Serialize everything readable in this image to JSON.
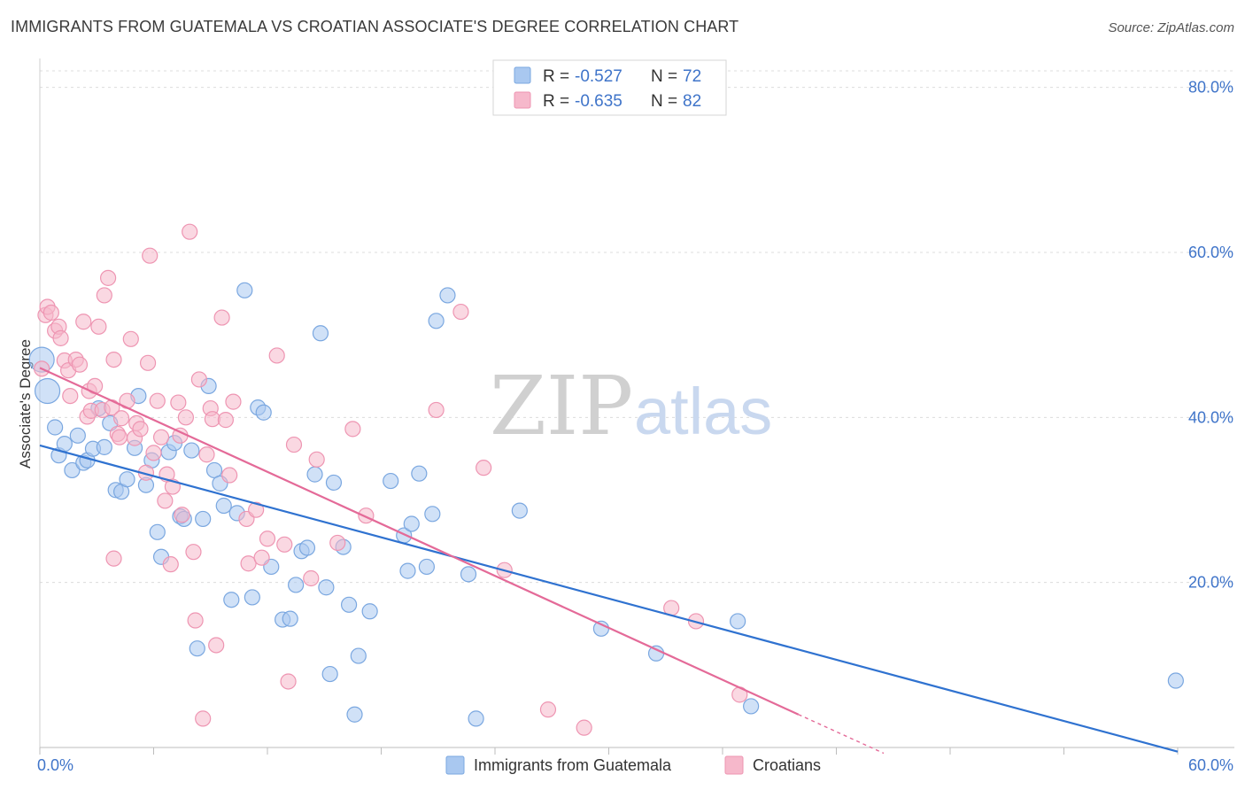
{
  "title": "IMMIGRANTS FROM GUATEMALA VS CROATIAN ASSOCIATE'S DEGREE CORRELATION CHART",
  "source": "Source: ZipAtlas.com",
  "watermark": {
    "zip": "ZIP",
    "atlas": "atlas"
  },
  "legend": {
    "rows": [
      {
        "r_label": "R =",
        "r_value": "-0.527",
        "n_label": "N =",
        "n_value": "72",
        "color": "#a9c8f0"
      },
      {
        "r_label": "R =",
        "r_value": "-0.635",
        "n_label": "N =",
        "n_value": "82",
        "color": "#f6b8cb"
      }
    ]
  },
  "colors": {
    "blue_fill": "#a9c8f0",
    "blue_stroke": "#7aa7e0",
    "blue_line": "#2f72d0",
    "pink_fill": "#f6b8cb",
    "pink_stroke": "#ee95b2",
    "pink_line": "#e46a98",
    "tick_text": "#3f74c9",
    "grid": "#dcdcdc"
  },
  "chart_data": {
    "type": "scatter",
    "title": "IMMIGRANTS FROM GUATEMALA VS CROATIAN ASSOCIATE'S DEGREE CORRELATION CHART",
    "xlabel": "",
    "ylabel": "Associate's Degree",
    "xlim": [
      0,
      60
    ],
    "ylim": [
      0,
      82
    ],
    "x_tick_labels": [
      "0.0%",
      "60.0%"
    ],
    "y_ticks": [
      20,
      40,
      60,
      80
    ],
    "y_tick_labels": [
      "20.0%",
      "40.0%",
      "60.0%",
      "80.0%"
    ],
    "grid": true,
    "legend_position": "top-center",
    "series": [
      {
        "name": "Immigrants from Guatemala",
        "color": "#a9c8f0",
        "trend": {
          "x": [
            0,
            60
          ],
          "y": [
            36.6,
            -0.5
          ]
        },
        "points": [
          [
            0.1,
            47.0
          ],
          [
            0.4,
            43.2
          ],
          [
            0.8,
            38.8
          ],
          [
            1.0,
            35.4
          ],
          [
            1.3,
            36.8
          ],
          [
            1.7,
            33.6
          ],
          [
            2.0,
            37.8
          ],
          [
            2.3,
            34.5
          ],
          [
            2.5,
            34.8
          ],
          [
            2.8,
            36.2
          ],
          [
            3.1,
            41.1
          ],
          [
            3.4,
            36.4
          ],
          [
            3.7,
            39.3
          ],
          [
            4.0,
            31.2
          ],
          [
            4.3,
            31.0
          ],
          [
            4.6,
            32.5
          ],
          [
            5.0,
            36.3
          ],
          [
            5.2,
            42.6
          ],
          [
            5.6,
            31.8
          ],
          [
            5.9,
            34.8
          ],
          [
            6.2,
            26.1
          ],
          [
            6.4,
            23.1
          ],
          [
            6.8,
            35.8
          ],
          [
            7.1,
            36.9
          ],
          [
            7.4,
            28.0
          ],
          [
            7.6,
            27.7
          ],
          [
            8.0,
            36.0
          ],
          [
            8.3,
            12.0
          ],
          [
            8.6,
            27.7
          ],
          [
            8.9,
            43.8
          ],
          [
            9.2,
            33.6
          ],
          [
            9.5,
            32.0
          ],
          [
            9.7,
            29.3
          ],
          [
            10.1,
            17.9
          ],
          [
            10.4,
            28.4
          ],
          [
            10.8,
            55.4
          ],
          [
            11.2,
            18.2
          ],
          [
            11.5,
            41.2
          ],
          [
            11.8,
            40.6
          ],
          [
            12.2,
            21.9
          ],
          [
            12.8,
            15.5
          ],
          [
            13.2,
            15.6
          ],
          [
            13.5,
            19.7
          ],
          [
            13.8,
            23.8
          ],
          [
            14.1,
            24.2
          ],
          [
            14.5,
            33.1
          ],
          [
            14.8,
            50.2
          ],
          [
            15.1,
            19.4
          ],
          [
            15.3,
            8.9
          ],
          [
            15.5,
            32.1
          ],
          [
            16.0,
            24.3
          ],
          [
            16.3,
            17.3
          ],
          [
            16.6,
            4.0
          ],
          [
            16.8,
            11.1
          ],
          [
            17.4,
            16.5
          ],
          [
            18.5,
            32.3
          ],
          [
            19.2,
            25.7
          ],
          [
            19.4,
            21.4
          ],
          [
            19.6,
            27.1
          ],
          [
            20.0,
            33.2
          ],
          [
            20.4,
            21.9
          ],
          [
            20.7,
            28.3
          ],
          [
            20.9,
            51.7
          ],
          [
            21.5,
            54.8
          ],
          [
            22.6,
            21.0
          ],
          [
            23.0,
            3.5
          ],
          [
            25.3,
            28.7
          ],
          [
            29.6,
            14.4
          ],
          [
            32.5,
            11.4
          ],
          [
            36.8,
            15.3
          ],
          [
            37.5,
            5.0
          ],
          [
            59.9,
            8.1
          ]
        ]
      },
      {
        "name": "Croatians",
        "color": "#f6b8cb",
        "trend": {
          "x": [
            0,
            40
          ],
          "y": [
            46.0,
            4.0
          ]
        },
        "dash": {
          "x": [
            40,
            44.5
          ],
          "y": [
            4.0,
            -0.7
          ]
        },
        "points": [
          [
            0.1,
            45.9
          ],
          [
            0.3,
            52.4
          ],
          [
            0.4,
            53.4
          ],
          [
            0.6,
            52.7
          ],
          [
            0.8,
            50.5
          ],
          [
            1.0,
            51.0
          ],
          [
            1.1,
            49.6
          ],
          [
            1.3,
            46.9
          ],
          [
            1.5,
            45.7
          ],
          [
            1.6,
            42.6
          ],
          [
            1.9,
            47.0
          ],
          [
            2.1,
            46.4
          ],
          [
            2.3,
            51.6
          ],
          [
            2.5,
            40.1
          ],
          [
            2.6,
            43.2
          ],
          [
            2.7,
            40.8
          ],
          [
            2.9,
            43.8
          ],
          [
            3.1,
            51.0
          ],
          [
            3.3,
            40.9
          ],
          [
            3.4,
            54.8
          ],
          [
            3.6,
            56.9
          ],
          [
            3.8,
            41.2
          ],
          [
            3.9,
            47.0
          ],
          [
            4.1,
            38.0
          ],
          [
            4.2,
            37.6
          ],
          [
            4.3,
            39.9
          ],
          [
            4.6,
            42.0
          ],
          [
            4.8,
            49.5
          ],
          [
            5.0,
            37.5
          ],
          [
            5.1,
            39.3
          ],
          [
            5.3,
            38.6
          ],
          [
            5.6,
            33.3
          ],
          [
            5.7,
            46.6
          ],
          [
            5.8,
            59.6
          ],
          [
            6.0,
            35.7
          ],
          [
            6.2,
            42.0
          ],
          [
            6.4,
            37.6
          ],
          [
            6.6,
            29.9
          ],
          [
            6.7,
            33.1
          ],
          [
            6.9,
            22.2
          ],
          [
            7.0,
            31.6
          ],
          [
            7.3,
            41.8
          ],
          [
            7.4,
            37.8
          ],
          [
            7.5,
            28.2
          ],
          [
            7.7,
            40.0
          ],
          [
            7.9,
            62.5
          ],
          [
            8.1,
            23.7
          ],
          [
            8.2,
            15.4
          ],
          [
            8.4,
            44.6
          ],
          [
            8.6,
            3.5
          ],
          [
            8.8,
            35.5
          ],
          [
            9.0,
            41.1
          ],
          [
            9.1,
            39.8
          ],
          [
            9.3,
            12.4
          ],
          [
            9.6,
            52.1
          ],
          [
            9.8,
            39.7
          ],
          [
            10.0,
            33.0
          ],
          [
            10.2,
            41.9
          ],
          [
            10.9,
            27.7
          ],
          [
            11.0,
            22.3
          ],
          [
            11.4,
            28.8
          ],
          [
            11.7,
            23.0
          ],
          [
            12.0,
            25.3
          ],
          [
            12.5,
            47.5
          ],
          [
            12.9,
            24.6
          ],
          [
            13.1,
            8.0
          ],
          [
            13.4,
            36.7
          ],
          [
            14.3,
            20.5
          ],
          [
            14.6,
            34.9
          ],
          [
            15.7,
            24.8
          ],
          [
            16.5,
            38.6
          ],
          [
            17.2,
            28.1
          ],
          [
            20.9,
            40.9
          ],
          [
            22.2,
            52.8
          ],
          [
            23.4,
            33.9
          ],
          [
            24.5,
            21.5
          ],
          [
            26.8,
            4.6
          ],
          [
            28.7,
            2.4
          ],
          [
            33.3,
            16.9
          ],
          [
            34.6,
            15.3
          ],
          [
            36.9,
            6.4
          ],
          [
            3.9,
            22.9
          ]
        ]
      }
    ]
  },
  "bottom_legend": {
    "items": [
      {
        "label": "Immigrants from Guatemala",
        "color": "#a9c8f0"
      },
      {
        "label": "Croatians",
        "color": "#f6b8cb"
      }
    ]
  }
}
